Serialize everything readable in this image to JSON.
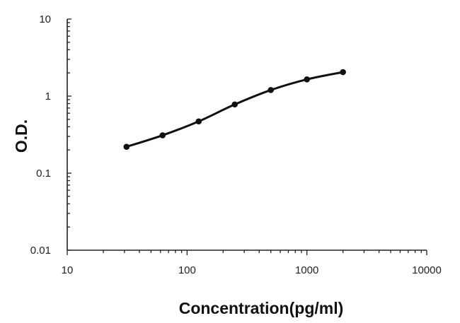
{
  "chart_data": {
    "type": "line",
    "xscale": "log",
    "yscale": "log",
    "xlabel": "Concentration(pg/ml)",
    "ylabel": "O.D.",
    "xlim": [
      10,
      10000
    ],
    "ylim": [
      0.01,
      10
    ],
    "x_tick_labels": [
      "10",
      "100",
      "1000",
      "10000"
    ],
    "y_tick_labels": [
      "0.01",
      "0.1",
      "1",
      "10"
    ],
    "grid": false,
    "line_color": "#111111",
    "series": [
      {
        "x": [
          31.25,
          62.5,
          125,
          250,
          500,
          1000,
          2000
        ],
        "y": [
          0.22,
          0.31,
          0.47,
          0.78,
          1.2,
          1.65,
          2.05
        ]
      }
    ]
  }
}
